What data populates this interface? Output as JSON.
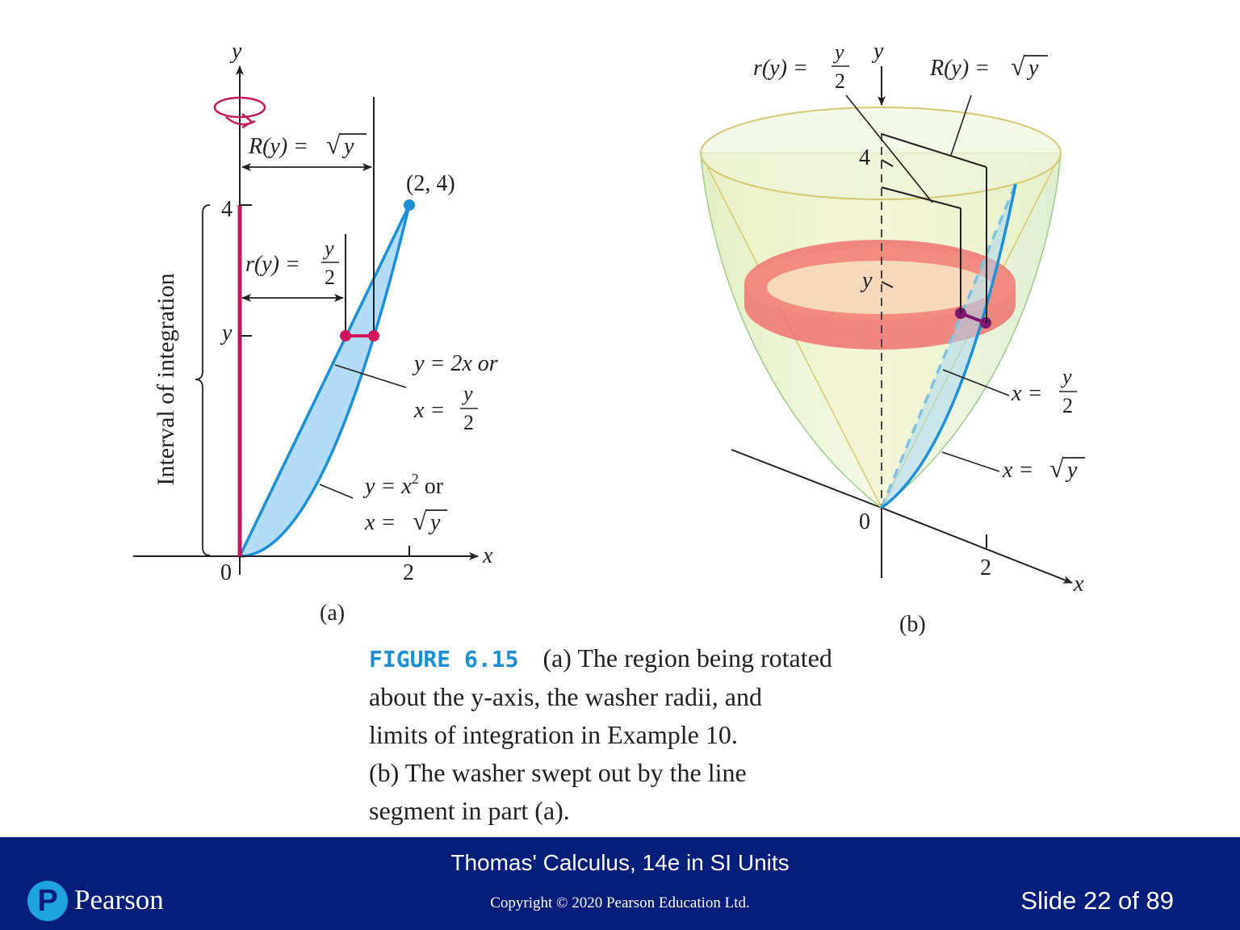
{
  "panel_a": {
    "y_axis_label": "y",
    "x_axis_label": "x",
    "origin_label": "0",
    "x_tick_2": "2",
    "y_tick_4": "4",
    "y_tick_y": "y",
    "point_label": "(2, 4)",
    "R_label": {
      "lhs": "R(y) = ",
      "radical": "√",
      "var": "y"
    },
    "r_label": {
      "lhs": "r(y) = ",
      "num": "y",
      "den": "2"
    },
    "line_label": {
      "eq1": "y = 2x or",
      "lhs": "x = ",
      "num": "y",
      "den": "2"
    },
    "curve_label": {
      "eq1_a": "y = x",
      "eq1_sup": "2",
      "eq1_b": " or",
      "lhs": "x = ",
      "radical": "√",
      "var": "y"
    },
    "interval_label": "Interval of integration",
    "part_label": "(a)"
  },
  "panel_b": {
    "y_axis_label": "y",
    "x_axis_label": "x",
    "origin_label": "0",
    "x_tick_2": "2",
    "y_tick_4": "4",
    "y_tick_y": "y",
    "r_label": {
      "lhs": "r(y) = ",
      "num": "y",
      "den": "2"
    },
    "R_label": {
      "lhs": "R(y) = ",
      "radical": "√",
      "var": "y"
    },
    "line_label": {
      "lhs": "x = ",
      "num": "y",
      "den": "2"
    },
    "curve_label": {
      "lhs": "x = ",
      "radical": "√",
      "var": "y"
    },
    "part_label": "(b)"
  },
  "caption": {
    "figure_label": "FIGURE 6.15",
    "line1": "(a) The region being rotated",
    "line2": "about the y-axis, the washer radii, and",
    "line3": "limits of integration in Example 10.",
    "line4": "(b) The washer swept out by the line",
    "line5": "segment in part (a)."
  },
  "footer": {
    "book_title": "Thomas' Calculus, 14e in SI Units",
    "copyright": "Copyright © 2020 Pearson Education Ltd.",
    "slide": "Slide 22 of 89",
    "logo_letter": "P",
    "logo_word": "Pearson"
  },
  "colors": {
    "region_fill": "#b3dcf6",
    "curve_blue": "#1b8fd8",
    "washer_magenta": "#d2145a",
    "washer_ring": "#f06a6a",
    "solid_fill": "#e3efc0",
    "footer_bg": "#041e7a",
    "caption_label": "#1a8fd8"
  }
}
